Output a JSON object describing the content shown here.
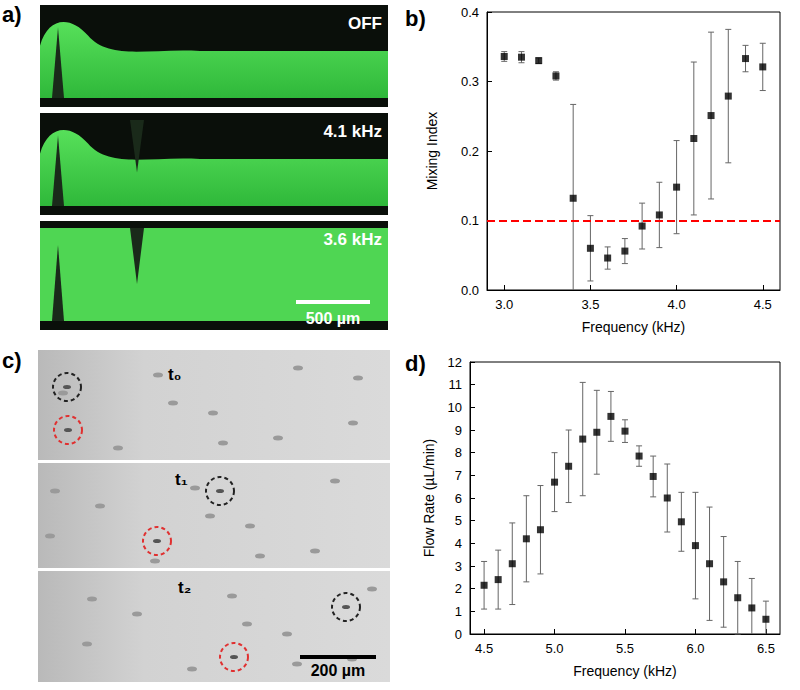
{
  "panels": [
    {
      "label": "a)",
      "images": [
        {
          "label": "OFF"
        },
        {
          "label": "4.1 kHz"
        },
        {
          "label": "3.6 kHz"
        }
      ],
      "scale_bar": "500 µm"
    },
    {
      "label": "c)",
      "images": [
        {
          "label": "t₀"
        },
        {
          "label": "t₁"
        },
        {
          "label": "t₂"
        }
      ],
      "scale_bar": "200 µm"
    }
  ],
  "chart_data": [
    {
      "type": "scatter",
      "title": "b)",
      "x_label": "Frequency (kHz)",
      "y_label": "Mixing Index",
      "x": [
        3.0,
        3.1,
        3.2,
        3.3,
        3.4,
        3.5,
        3.6,
        3.7,
        3.8,
        3.9,
        4.0,
        4.1,
        4.2,
        4.3,
        4.4,
        4.5
      ],
      "values": [
        0.336,
        0.335,
        0.33,
        0.308,
        0.132,
        0.06,
        0.046,
        0.056,
        0.092,
        0.108,
        0.148,
        0.218,
        0.251,
        0.279,
        0.333,
        0.321
      ],
      "errors": [
        0.007,
        0.008,
        0.004,
        0.006,
        0.135,
        0.047,
        0.016,
        0.018,
        0.033,
        0.047,
        0.067,
        0.11,
        0.12,
        0.096,
        0.019,
        0.034
      ],
      "color": "#000000",
      "marker": "square",
      "xlim": [
        2.9,
        4.6
      ],
      "xticks": [
        {
          "value": 3,
          "label": "3.0"
        },
        3.5,
        {
          "value": 4,
          "label": "4.0"
        },
        4.5
      ],
      "ylim": [
        0,
        0.4
      ],
      "yticks": [
        {
          "value": 0,
          "label": "0.0"
        },
        0.1,
        0.2,
        0.3,
        0.4
      ],
      "grid": false,
      "reference_line": {
        "value": 0.1,
        "color": "#ff0000",
        "line_style": "dashed"
      }
    },
    {
      "type": "scatter",
      "title": "d)",
      "x_label": "Frequency (kHz)",
      "y_label": "Flow Rate (µL/min)",
      "x": [
        4.5,
        4.6,
        4.7,
        4.8,
        4.9,
        5.0,
        5.1,
        5.2,
        5.3,
        5.4,
        5.5,
        5.6,
        5.7,
        5.8,
        5.9,
        6.0,
        6.1,
        6.2,
        6.3,
        6.4,
        6.5
      ],
      "values": [
        2.15,
        2.4,
        3.1,
        4.2,
        4.6,
        6.7,
        7.4,
        8.6,
        8.9,
        9.6,
        8.95,
        7.85,
        6.95,
        6.0,
        4.95,
        3.9,
        3.1,
        2.3,
        1.6,
        1.15,
        0.65
      ],
      "errors": [
        1.05,
        1.3,
        1.8,
        1.9,
        1.95,
        1.3,
        1.6,
        2.5,
        1.85,
        1.1,
        0.5,
        0.45,
        0.9,
        1.5,
        1.3,
        2.35,
        2.5,
        2.0,
        1.6,
        1.3,
        0.8
      ],
      "color": "#000000",
      "marker": "square",
      "xlim": [
        4.4,
        6.6
      ],
      "xticks": [
        4.5,
        {
          "value": 5,
          "label": "5.0"
        },
        5.5,
        {
          "value": 6,
          "label": "6.0"
        },
        6.5
      ],
      "ylim": [
        0,
        12
      ],
      "yticks": [
        0,
        1,
        2,
        3,
        4,
        5,
        6,
        7,
        8,
        9,
        10,
        11,
        12
      ],
      "grid": false
    }
  ]
}
